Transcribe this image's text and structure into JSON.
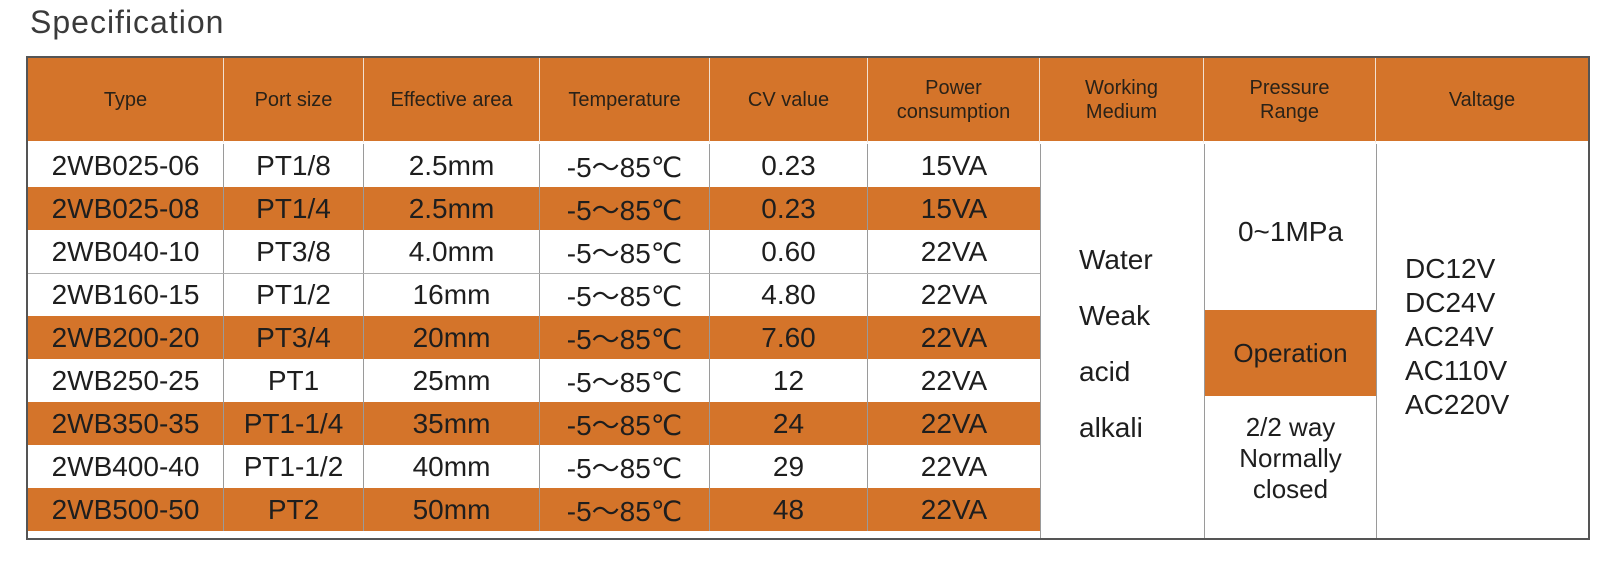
{
  "title": "Specification",
  "headers": {
    "type": "Type",
    "port_size": "Port size",
    "effective_area": "Effective area",
    "temperature": "Temperature",
    "cv_value": "CV value",
    "power_1": "Power",
    "power_2": "consumption",
    "working_1": "Working",
    "working_2": "Medium",
    "pressure_1": "Pressure",
    "pressure_2": "Range",
    "voltage": "Valtage"
  },
  "rows": [
    {
      "type": "2WB025-06",
      "port": "PT1/8",
      "area": "2.5mm",
      "temp": "-5～85℃",
      "cv": "0.23",
      "power": "15VA",
      "highlight": false
    },
    {
      "type": "2WB025-08",
      "port": "PT1/4",
      "area": "2.5mm",
      "temp": "-5～85℃",
      "cv": "0.23",
      "power": "15VA",
      "highlight": true
    },
    {
      "type": "2WB040-10",
      "port": "PT3/8",
      "area": "4.0mm",
      "temp": "-5～85℃",
      "cv": "0.60",
      "power": "22VA",
      "highlight": false
    },
    {
      "type": "2WB160-15",
      "port": "PT1/2",
      "area": "16mm",
      "temp": "-5～85℃",
      "cv": "4.80",
      "power": "22VA",
      "highlight": false
    },
    {
      "type": "2WB200-20",
      "port": "PT3/4",
      "area": "20mm",
      "temp": "-5～85℃",
      "cv": "7.60",
      "power": "22VA",
      "highlight": true
    },
    {
      "type": "2WB250-25",
      "port": "PT1",
      "area": "25mm",
      "temp": "-5～85℃",
      "cv": "12",
      "power": "22VA",
      "highlight": false
    },
    {
      "type": "2WB350-35",
      "port": "PT1-1/4",
      "area": "35mm",
      "temp": "-5～85℃",
      "cv": "24",
      "power": "22VA",
      "highlight": true
    },
    {
      "type": "2WB400-40",
      "port": "PT1-1/2",
      "area": "40mm",
      "temp": "-5～85℃",
      "cv": "29",
      "power": "22VA",
      "highlight": false
    },
    {
      "type": "2WB500-50",
      "port": "PT2",
      "area": "50mm",
      "temp": "-5～85℃",
      "cv": "48",
      "power": "22VA",
      "highlight": true
    }
  ],
  "working_medium": [
    "Water",
    "Weak",
    "acid",
    "alkali"
  ],
  "pressure_range": "0~1MPa",
  "operation": {
    "label": "Operation",
    "lines": [
      "2/2 way",
      "Normally",
      "closed"
    ]
  },
  "voltages": [
    "DC12V",
    "DC24V",
    "AC24V",
    "AC110V",
    "AC220V"
  ],
  "colors": {
    "accent": "#d4742a",
    "text": "#1e1e1e"
  }
}
